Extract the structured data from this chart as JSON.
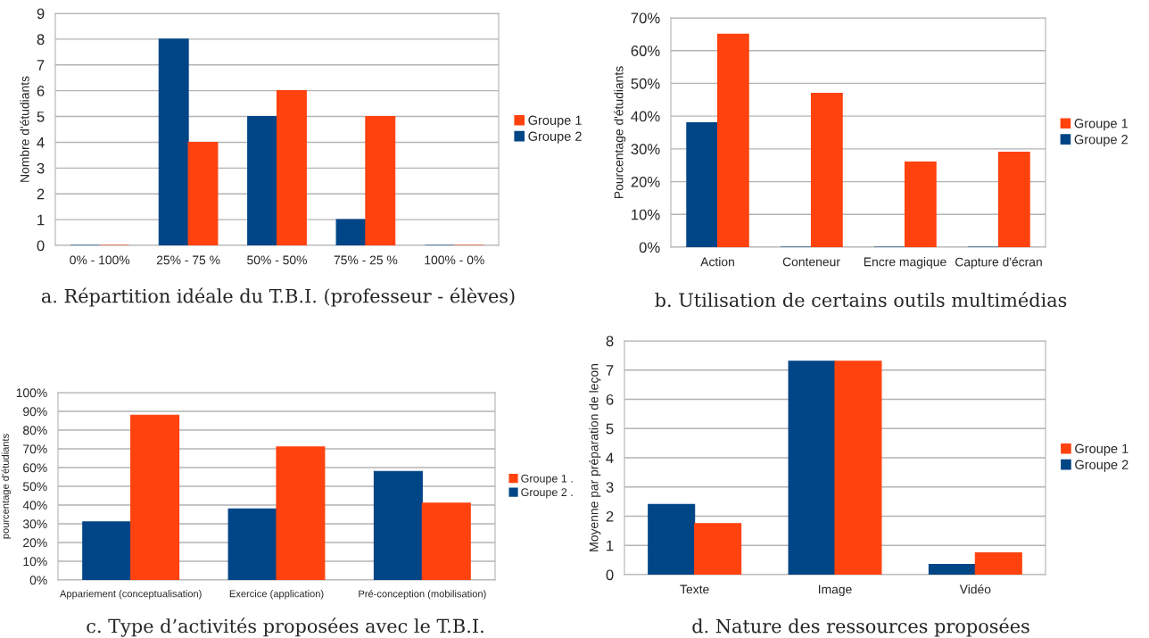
{
  "chart_data": [
    {
      "type": "bar",
      "title": "a. Répartition idéale du T.B.I. (professeur - élèves)",
      "ylabel": "Nombre d'étudiants",
      "categories": [
        "0% - 100%",
        "25% - 75 %",
        "50% - 50%",
        "75% - 25 %",
        "100% - 0%"
      ],
      "series": [
        {
          "name": "Groupe 2",
          "color": "#004586",
          "values": [
            0,
            8,
            5,
            1,
            0
          ]
        },
        {
          "name": "Groupe 1",
          "color": "#ff420e",
          "values": [
            0,
            4,
            6,
            5,
            0
          ]
        }
      ],
      "ylim": [
        0,
        9
      ],
      "yticks": [
        0,
        1,
        2,
        3,
        4,
        5,
        6,
        7,
        8,
        9
      ],
      "grid": "y",
      "legend": "right"
    },
    {
      "type": "bar",
      "title": "b. Utilisation de certains outils multimédias",
      "ylabel": "Pourcentage d'étudiants",
      "categories": [
        "Action",
        "Conteneur",
        "Encre magique",
        "Capture d'écran"
      ],
      "series": [
        {
          "name": "Groupe 2",
          "color": "#004586",
          "values": [
            38,
            0,
            0,
            0
          ]
        },
        {
          "name": "Groupe 1",
          "color": "#ff420e",
          "values": [
            65,
            47,
            26,
            29
          ]
        }
      ],
      "ylim": [
        0,
        70
      ],
      "yticks": [
        {
          "value": 0,
          "label": "0%"
        },
        {
          "value": 10,
          "label": "10%"
        },
        {
          "value": 20,
          "label": "20%"
        },
        {
          "value": 30,
          "label": "30%"
        },
        {
          "value": 40,
          "label": "40%"
        },
        {
          "value": 50,
          "label": "50%"
        },
        {
          "value": 60,
          "label": "60%"
        },
        {
          "value": 70,
          "label": "70%"
        }
      ],
      "grid": "y",
      "legend": "right"
    },
    {
      "type": "bar",
      "title": "c. Type d’activités proposées avec le T.B.I.",
      "ylabel": "pourcentage d'étudiants",
      "categories": [
        "Appariement (conceptualisation)",
        "Exercice (application)",
        "Pré-conception (mobilisation)"
      ],
      "series": [
        {
          "name": "Groupe 2 .",
          "color": "#004586",
          "values": [
            31,
            38,
            58
          ]
        },
        {
          "name": "Groupe 1 .",
          "color": "#ff420e",
          "values": [
            88,
            71,
            41
          ]
        }
      ],
      "ylim": [
        0,
        100
      ],
      "yticks": [
        {
          "value": 0,
          "label": "0%"
        },
        {
          "value": 10,
          "label": "10%"
        },
        {
          "value": 20,
          "label": "20%"
        },
        {
          "value": 30,
          "label": "30%"
        },
        {
          "value": 40,
          "label": "40%"
        },
        {
          "value": 50,
          "label": "50%"
        },
        {
          "value": 60,
          "label": "60%"
        },
        {
          "value": 70,
          "label": "70%"
        },
        {
          "value": 80,
          "label": "80%"
        },
        {
          "value": 90,
          "label": "90%"
        },
        {
          "value": 100,
          "label": "100%"
        }
      ],
      "grid": "y",
      "legend": "right"
    },
    {
      "type": "bar",
      "title": "d. Nature des ressources proposées",
      "ylabel": "Moyenne par préparation de leçon",
      "categories": [
        "Texte",
        "Image",
        "Vidéo"
      ],
      "series": [
        {
          "name": "Groupe 2",
          "color": "#004586",
          "values": [
            2.4,
            7.3,
            0.35
          ]
        },
        {
          "name": "Groupe 1",
          "color": "#ff420e",
          "values": [
            1.75,
            7.3,
            0.75
          ]
        }
      ],
      "ylim": [
        0,
        8
      ],
      "yticks": [
        0,
        1,
        2,
        3,
        4,
        5,
        6,
        7,
        8
      ],
      "grid": "y",
      "legend": "right"
    }
  ]
}
